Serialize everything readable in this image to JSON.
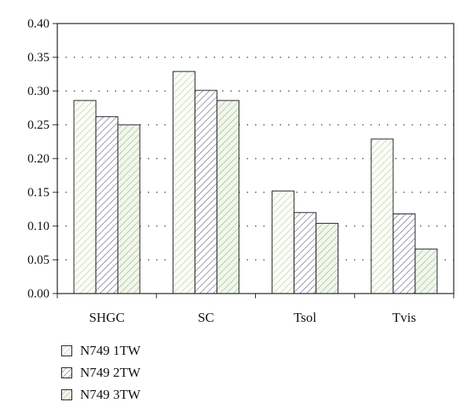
{
  "chart_data": {
    "type": "bar",
    "categories": [
      "SHGC",
      "SC",
      "Tsol",
      "Tvis"
    ],
    "series": [
      {
        "name": "N749 1TW",
        "values": [
          0.286,
          0.329,
          0.152,
          0.229
        ],
        "color": "#d2e4c4",
        "hatch": "#b8d2a4",
        "bg": "#fbfdf8"
      },
      {
        "name": "N749 2TW",
        "values": [
          0.262,
          0.301,
          0.12,
          0.118
        ],
        "color": "#6e6e8a",
        "hatch": "#6e6e8a",
        "bg": "#ffffff"
      },
      {
        "name": "N749 3TW",
        "values": [
          0.25,
          0.286,
          0.104,
          0.066
        ],
        "color": "#9aa988",
        "hatch": "#a4b890",
        "bg": "#f1f7ec"
      }
    ],
    "ylim": [
      0,
      0.4
    ],
    "yticks": [
      "0.00",
      "0.05",
      "0.10",
      "0.15",
      "0.20",
      "0.25",
      "0.30",
      "0.35",
      "0.40"
    ],
    "grid": "dotted horizontal",
    "legend_position": "bottom-left",
    "xlabel": "",
    "ylabel": ""
  }
}
